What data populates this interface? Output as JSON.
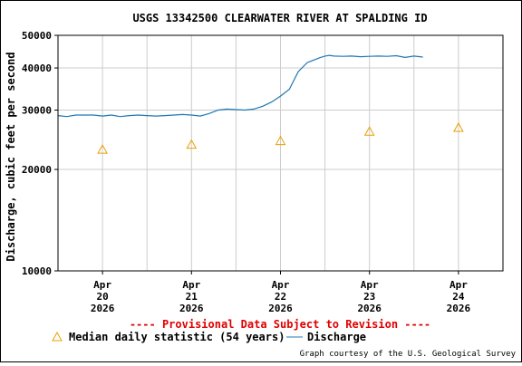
{
  "chart_data": {
    "type": "line",
    "title": "USGS 13342500 CLEARWATER RIVER AT SPALDING ID",
    "ylabel": "Discharge, cubic feet per second",
    "yscale": "log",
    "ylim": [
      10000,
      50000
    ],
    "yticks": [
      {
        "value": 10000,
        "label": "10000"
      },
      {
        "value": 20000,
        "label": "20000"
      },
      {
        "value": 30000,
        "label": "30000"
      },
      {
        "value": 40000,
        "label": "40000"
      },
      {
        "value": 50000,
        "label": "50000"
      }
    ],
    "xlim": [
      19.5,
      24.5
    ],
    "xticks": [
      {
        "value": 20,
        "month": "Apr",
        "day": "20",
        "year": "2026"
      },
      {
        "value": 21,
        "month": "Apr",
        "day": "21",
        "year": "2026"
      },
      {
        "value": 22,
        "month": "Apr",
        "day": "22",
        "year": "2026"
      },
      {
        "value": 23,
        "month": "Apr",
        "day": "23",
        "year": "2026"
      },
      {
        "value": 24,
        "month": "Apr",
        "day": "24",
        "year": "2026"
      }
    ],
    "grid": true,
    "series": [
      {
        "name": "Discharge",
        "color": "#1f77b4",
        "x": [
          19.5,
          19.6,
          19.7,
          19.8,
          19.9,
          20.0,
          20.1,
          20.2,
          20.3,
          20.4,
          20.5,
          20.6,
          20.7,
          20.8,
          20.9,
          21.0,
          21.1,
          21.2,
          21.3,
          21.4,
          21.5,
          21.6,
          21.7,
          21.8,
          21.9,
          22.0,
          22.1,
          22.2,
          22.3,
          22.35,
          22.45,
          22.5,
          22.55,
          22.6,
          22.7,
          22.8,
          22.9,
          23.0,
          23.1,
          23.2,
          23.3,
          23.4,
          23.5,
          23.6
        ],
        "values": [
          28900,
          28700,
          29000,
          29000,
          29000,
          28800,
          29000,
          28700,
          28900,
          29000,
          28900,
          28800,
          28900,
          29000,
          29100,
          29000,
          28800,
          29300,
          30000,
          30200,
          30100,
          30000,
          30200,
          30800,
          31700,
          33000,
          34600,
          39000,
          41500,
          42000,
          43000,
          43400,
          43600,
          43400,
          43300,
          43400,
          43200,
          43300,
          43400,
          43300,
          43500,
          43000,
          43400,
          43100
        ]
      },
      {
        "name": "Median daily statistic (54 years)",
        "marker": "triangle",
        "color": "#e8a000",
        "x": [
          20.0,
          21.0,
          22.0,
          23.0,
          24.0
        ],
        "values": [
          22900,
          23700,
          24300,
          25900,
          26600
        ]
      }
    ],
    "annotations": {
      "provisional": "---- Provisional Data Subject to Revision ----",
      "credit": "Graph courtesy of the U.S. Geological Survey"
    },
    "legend": {
      "placement": "bottom",
      "median_label": "Median daily statistic (54 years)",
      "discharge_label": "Discharge"
    },
    "colors": {
      "discharge": "#1f77b4",
      "median": "#e8a000",
      "provisional": "#e00000",
      "grid": "#cccccc"
    }
  }
}
